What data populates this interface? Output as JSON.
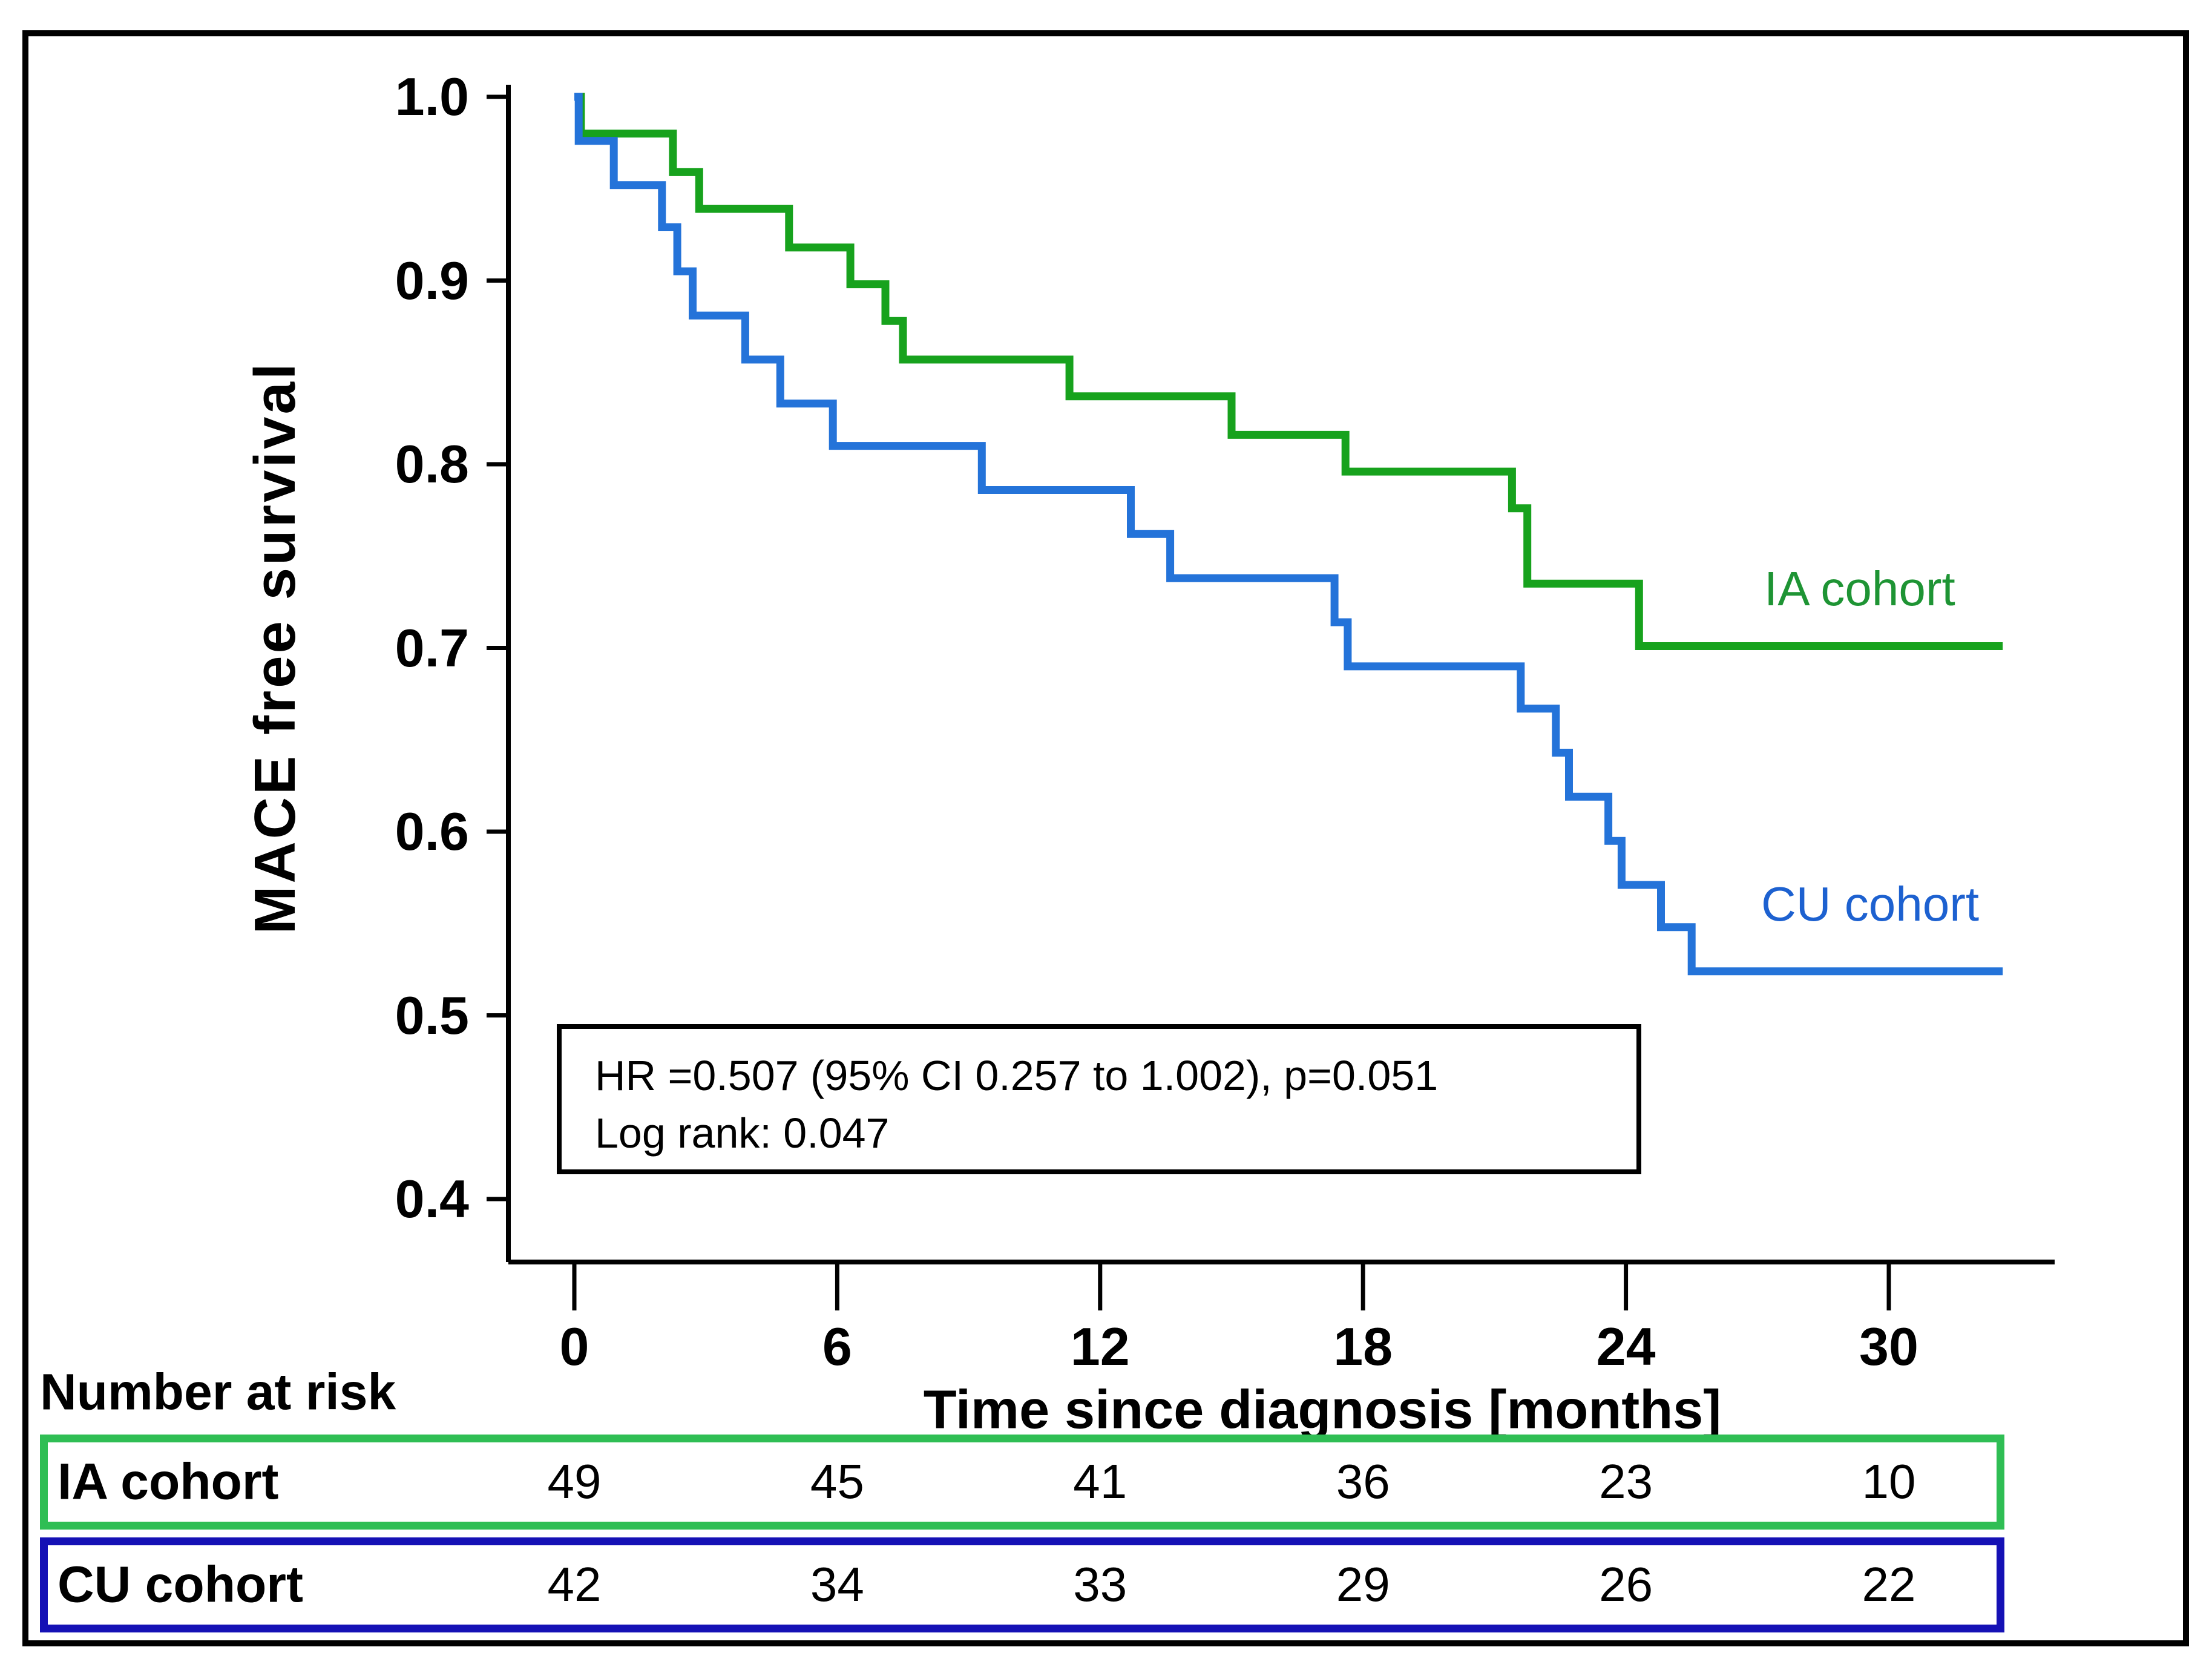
{
  "colors": {
    "background": "#ffffff",
    "frame_border": "#000000",
    "axis": "#000000",
    "ia_line": "#17A21D",
    "ia_label_text": "#1E9434",
    "cu_line": "#2473D9",
    "cu_label_text": "#1D61D0",
    "ia_risk_box_border": "#2FBE54",
    "cu_risk_box_border": "#1511B5"
  },
  "chart_data": {
    "type": "line",
    "subtype": "kaplan-meier-step",
    "title": "",
    "xlabel": "Time since diagnosis [months]",
    "ylabel": "MACE free survival",
    "xlim": [
      0,
      32.6
    ],
    "ylim": [
      0.4,
      1.0
    ],
    "grid": false,
    "x_ticks": [
      "0",
      "6",
      "12",
      "18",
      "24",
      "30"
    ],
    "y_ticks": [
      "1.0",
      "0.9",
      "0.8",
      "0.7",
      "0.6",
      "0.5",
      "0.4"
    ],
    "legend_position": "end-of-line-labels",
    "series": [
      {
        "name": "IA cohort",
        "color": "#17A21D",
        "label_color": "#1E9434",
        "points": [
          [
            0,
            1.0
          ],
          [
            0.15,
            0.98
          ],
          [
            2.25,
            0.959
          ],
          [
            2.85,
            0.939
          ],
          [
            4.9,
            0.918
          ],
          [
            6.3,
            0.898
          ],
          [
            7.1,
            0.878
          ],
          [
            7.5,
            0.857
          ],
          [
            11.3,
            0.837
          ],
          [
            15.0,
            0.816
          ],
          [
            17.6,
            0.796
          ],
          [
            21.4,
            0.776
          ],
          [
            21.75,
            0.735
          ],
          [
            24.3,
            0.701
          ],
          [
            32.6,
            0.701
          ]
        ]
      },
      {
        "name": "CU cohort",
        "color": "#2473D9",
        "label_color": "#1D61D0",
        "points": [
          [
            0,
            1.0
          ],
          [
            0.1,
            0.976
          ],
          [
            0.9,
            0.952
          ],
          [
            2.0,
            0.929
          ],
          [
            2.35,
            0.905
          ],
          [
            2.7,
            0.881
          ],
          [
            3.9,
            0.857
          ],
          [
            4.7,
            0.833
          ],
          [
            5.9,
            0.81
          ],
          [
            9.3,
            0.786
          ],
          [
            12.7,
            0.762
          ],
          [
            13.6,
            0.738
          ],
          [
            17.35,
            0.714
          ],
          [
            17.65,
            0.69
          ],
          [
            21.6,
            0.667
          ],
          [
            22.4,
            0.643
          ],
          [
            22.7,
            0.619
          ],
          [
            23.6,
            0.595
          ],
          [
            23.9,
            0.571
          ],
          [
            24.8,
            0.548
          ],
          [
            25.5,
            0.524
          ],
          [
            32.6,
            0.524
          ]
        ]
      }
    ],
    "annotation": {
      "line1": "HR =0.507 (95% CI 0.257 to 1.002), p=0.051",
      "line2": "Log rank: 0.047"
    }
  },
  "risk_table": {
    "heading": "Number at risk",
    "columns": [
      "0",
      "6",
      "12",
      "18",
      "24",
      "30"
    ],
    "rows": [
      {
        "label": "IA cohort",
        "values": [
          "49",
          "45",
          "41",
          "36",
          "23",
          "10"
        ],
        "border_color": "#2FBE54"
      },
      {
        "label": "CU cohort",
        "values": [
          "42",
          "34",
          "33",
          "29",
          "26",
          "22"
        ],
        "border_color": "#1511B5"
      }
    ]
  }
}
